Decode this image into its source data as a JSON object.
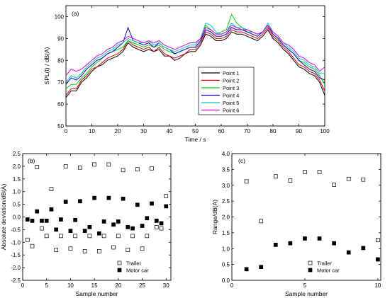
{
  "chart_data": [
    {
      "type": "line",
      "panel_label": "(a)",
      "xlabel": "Time / s",
      "ylabel": "SPL(t) / dB(A)",
      "xlim": [
        0,
        100
      ],
      "ylim": [
        50,
        105
      ],
      "xticks": [
        0,
        10,
        20,
        30,
        40,
        50,
        60,
        70,
        80,
        90,
        100
      ],
      "yticks": [
        50,
        60,
        70,
        80,
        90,
        100
      ],
      "legend_position": "bottom-right",
      "grid": false,
      "x": [
        0,
        2,
        4,
        6,
        8,
        10,
        12,
        14,
        16,
        18,
        20,
        22,
        24,
        26,
        28,
        30,
        32,
        34,
        36,
        38,
        40,
        42,
        44,
        46,
        48,
        50,
        52,
        54,
        56,
        58,
        60,
        62,
        64,
        66,
        68,
        70,
        72,
        74,
        76,
        78,
        80,
        82,
        84,
        86,
        88,
        90,
        92,
        94,
        96,
        98,
        100
      ],
      "series": [
        {
          "name": "Point 1",
          "color": "#000000",
          "values": [
            63,
            66,
            66,
            70,
            72,
            75,
            77,
            78,
            80,
            81,
            82,
            84,
            88,
            86,
            85,
            84,
            85,
            84,
            85,
            82,
            82,
            80,
            81,
            83,
            84,
            84,
            87,
            92,
            91,
            89,
            89,
            90,
            93,
            92,
            92,
            91,
            90,
            89,
            91,
            94,
            90,
            88,
            85,
            83,
            80,
            77,
            76,
            74,
            73,
            70,
            64
          ]
        },
        {
          "name": "Point 2",
          "color": "#dd0000",
          "values": [
            64,
            67,
            67,
            71,
            73,
            76,
            77,
            79,
            81,
            82,
            83,
            85,
            89,
            87,
            86,
            85,
            86,
            84,
            86,
            83,
            82,
            81,
            82,
            83,
            85,
            85,
            88,
            93,
            92,
            90,
            90,
            91,
            94,
            93,
            93,
            92,
            91,
            90,
            92,
            95,
            91,
            89,
            86,
            84,
            81,
            78,
            77,
            75,
            74,
            71,
            66
          ]
        },
        {
          "name": "Point 3",
          "color": "#00cc00",
          "values": [
            67,
            69,
            69,
            72,
            74,
            77,
            79,
            81,
            83,
            84,
            85,
            86,
            89,
            88,
            87,
            86,
            87,
            86,
            87,
            85,
            84,
            83,
            84,
            85,
            86,
            86,
            89,
            96,
            94,
            92,
            93,
            94,
            101,
            97,
            95,
            93,
            93,
            92,
            93,
            96,
            92,
            90,
            87,
            85,
            83,
            80,
            79,
            77,
            76,
            73,
            69
          ]
        },
        {
          "name": "Point 4",
          "color": "#0000cc",
          "values": [
            69,
            72,
            71,
            73,
            76,
            78,
            80,
            81,
            83,
            84,
            86,
            88,
            95,
            89,
            88,
            87,
            88,
            86,
            88,
            86,
            85,
            83,
            84,
            85,
            86,
            86,
            89,
            94,
            93,
            91,
            91,
            92,
            95,
            94,
            94,
            93,
            92,
            91,
            93,
            96,
            92,
            90,
            87,
            85,
            83,
            80,
            78,
            76,
            75,
            72,
            71
          ]
        },
        {
          "name": "Point 5",
          "color": "#00cccc",
          "values": [
            70,
            73,
            72,
            74,
            77,
            79,
            81,
            82,
            84,
            85,
            87,
            88,
            90,
            89,
            88,
            88,
            89,
            87,
            88,
            86,
            85,
            84,
            85,
            86,
            87,
            87,
            90,
            97,
            96,
            93,
            92,
            93,
            97,
            95,
            95,
            94,
            93,
            92,
            93,
            97,
            93,
            91,
            88,
            86,
            84,
            81,
            80,
            78,
            77,
            74,
            74
          ]
        },
        {
          "name": "Point 6",
          "color": "#dd00dd",
          "values": [
            73,
            76,
            75,
            76,
            78,
            80,
            82,
            83,
            85,
            86,
            88,
            89,
            91,
            90,
            89,
            88,
            89,
            88,
            89,
            87,
            86,
            85,
            86,
            87,
            88,
            88,
            90,
            95,
            94,
            92,
            92,
            93,
            96,
            95,
            94,
            94,
            93,
            92,
            93,
            96,
            93,
            91,
            88,
            87,
            85,
            82,
            81,
            79,
            78,
            75,
            77
          ]
        }
      ]
    },
    {
      "type": "scatter",
      "panel_label": "(b)",
      "xlabel": "Sample number",
      "ylabel": "Absolute deviation/dB(A)",
      "xlim": [
        0,
        31
      ],
      "ylim": [
        -2.5,
        2.5
      ],
      "xticks": [
        0,
        5,
        10,
        15,
        20,
        25,
        30
      ],
      "yticks": [
        -2.5,
        -2.0,
        -1.5,
        -1.0,
        -0.5,
        0.0,
        0.5,
        1.0,
        1.5,
        2.0,
        2.5
      ],
      "legend_position": "bottom-right",
      "grid": false,
      "series": [
        {
          "name": "Trailer",
          "marker": "open-square",
          "x": [
            1,
            2,
            3,
            4,
            5,
            6,
            7,
            8,
            9,
            10,
            11,
            12,
            13,
            14,
            15,
            16,
            17,
            18,
            19,
            20,
            21,
            22,
            23,
            24,
            25,
            26,
            27,
            28,
            29,
            30
          ],
          "values": [
            -0.9,
            -1.15,
            1.97,
            -0.45,
            -0.75,
            1.1,
            -1.3,
            -0.75,
            2.0,
            -1.25,
            -0.75,
            1.95,
            -1.35,
            -0.75,
            2.07,
            -1.35,
            -0.75,
            2.07,
            -1.2,
            -0.75,
            1.85,
            -1.3,
            -0.75,
            1.88,
            -1.25,
            -0.75,
            1.92,
            -0.4,
            -0.45,
            0.82
          ]
        },
        {
          "name": "Motor car",
          "marker": "filled-square",
          "x": [
            1,
            2,
            3,
            4,
            5,
            6,
            7,
            8,
            9,
            10,
            11,
            12,
            13,
            14,
            15,
            16,
            17,
            18,
            19,
            20,
            21,
            22,
            23,
            24,
            25,
            26,
            27,
            28,
            29,
            30
          ],
          "values": [
            -0.1,
            -0.15,
            0.22,
            -0.15,
            -0.15,
            0.3,
            -0.5,
            -0.1,
            0.6,
            -0.55,
            -0.12,
            0.62,
            -0.55,
            -0.4,
            0.75,
            -0.65,
            -0.18,
            0.75,
            -0.3,
            -0.18,
            0.72,
            -0.4,
            -0.45,
            0.48,
            -0.35,
            -0.05,
            0.53,
            -0.15,
            -0.25,
            0.42
          ]
        }
      ]
    },
    {
      "type": "scatter",
      "panel_label": "(c)",
      "xlabel": "Sample number",
      "ylabel": "Range/dB(A)",
      "xlim": [
        0,
        10.2
      ],
      "ylim": [
        0.0,
        4.0
      ],
      "xticks": [
        0,
        5,
        10
      ],
      "yticks": [
        0.0,
        0.5,
        1.0,
        1.5,
        2.0,
        2.5,
        3.0,
        3.5,
        4.0
      ],
      "legend_position": "bottom-right",
      "grid": false,
      "series": [
        {
          "name": "Trailer",
          "marker": "open-square",
          "x": [
            1,
            2,
            3,
            4,
            5,
            6,
            7,
            8,
            9,
            10
          ],
          "values": [
            3.12,
            1.87,
            3.28,
            3.15,
            3.42,
            3.42,
            3.02,
            3.2,
            3.18,
            1.27
          ]
        },
        {
          "name": "Motor car",
          "marker": "filled-square",
          "x": [
            1,
            2,
            3,
            4,
            5,
            6,
            7,
            8,
            9,
            10
          ],
          "values": [
            0.35,
            0.42,
            1.12,
            1.17,
            1.32,
            1.32,
            1.17,
            0.88,
            1.02,
            0.66
          ]
        }
      ]
    }
  ]
}
